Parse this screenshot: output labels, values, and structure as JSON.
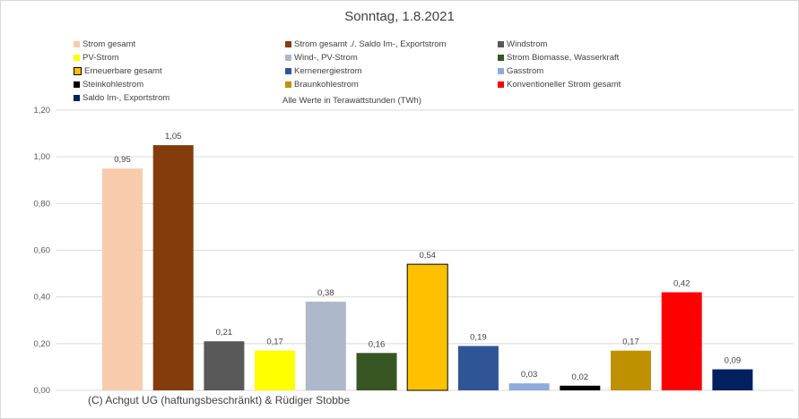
{
  "chart_data": {
    "type": "bar",
    "title": "Sonntag, 1.8.2021",
    "note": "Alle Werte in Terawattstunden (TWh)",
    "credit": "(C) Achgut UG (haftungsbeschränkt) & Rüdiger Stobbe",
    "ylim": [
      0,
      1.2
    ],
    "yticks": [
      "0,00",
      "0,20",
      "0,40",
      "0,60",
      "0,80",
      "1,00",
      "1,20"
    ],
    "grid": true,
    "legend_position": "top",
    "categories": [
      "Strom gesamt",
      "Strom gesamt ./. Saldo Im-, Exportstrom",
      "Windstrom",
      "PV-Strom",
      "Wind-, PV-Strom",
      "Strom Biomasse, Wasserkraft",
      "Erneuerbare gesamt",
      "Kernenergiestrom",
      "Gasstrom",
      "Steinkohlestrom",
      "Braunkohlestrom",
      "Konventioneller Strom gesamt",
      "Saldo Im-, Exportstrom"
    ],
    "values": [
      0.95,
      1.05,
      0.21,
      0.17,
      0.38,
      0.16,
      0.54,
      0.19,
      0.03,
      0.02,
      0.17,
      0.42,
      0.09
    ],
    "labels": [
      "0,95",
      "1,05",
      "0,21",
      "0,17",
      "0,38",
      "0,16",
      "0,54",
      "0,19",
      "0,03",
      "0,02",
      "0,17",
      "0,42",
      "0,09"
    ],
    "colors": [
      "#f8cbad",
      "#843c0c",
      "#595959",
      "#ffff00",
      "#adb9ca",
      "#375623",
      "#ffc000",
      "#2f5597",
      "#8faadc",
      "#000000",
      "#bf9000",
      "#ff0000",
      "#002060"
    ]
  }
}
